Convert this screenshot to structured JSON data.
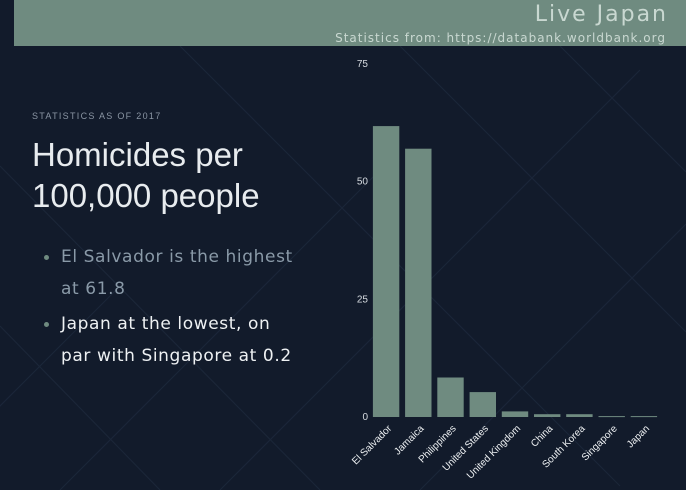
{
  "header": {
    "brand": "Live Japan",
    "source": "Statistics from: https://databank.worldbank.org"
  },
  "kicker": "STATISTICS AS OF 2017",
  "title_lines": [
    "Homicides per",
    "100,000 people"
  ],
  "bullets": [
    {
      "lines": [
        "El Salvador is the highest",
        "at 61.8"
      ]
    },
    {
      "lines": [
        "Japan at the lowest, on",
        "par with Singapore at 0.2"
      ]
    }
  ],
  "colors": {
    "background": "#121b2b",
    "accent": "#6f8b80",
    "bar": "#6f8b80",
    "text_light": "#e8ecef",
    "text_muted": "#8a9aa8"
  },
  "chart_data": {
    "type": "bar",
    "title": "Homicides per 100,000 people",
    "categories": [
      "El Salvador",
      "Jamaica",
      "Philippines",
      "United States",
      "United Kingdom",
      "China",
      "South Korea",
      "Singapore",
      "Japan"
    ],
    "values": [
      61.8,
      57.0,
      8.4,
      5.3,
      1.2,
      0.6,
      0.6,
      0.2,
      0.2
    ],
    "ylim": [
      0,
      75
    ],
    "yticks": [
      0,
      25,
      50,
      75
    ],
    "xlabel": "",
    "ylabel": "",
    "grid": false,
    "legend": "none"
  }
}
